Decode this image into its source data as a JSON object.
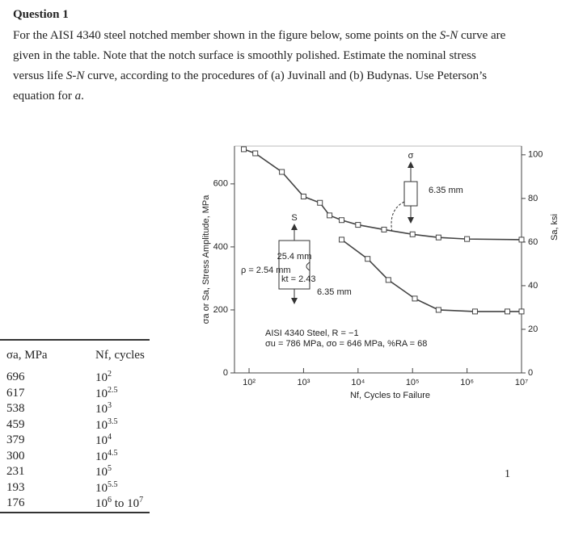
{
  "question": {
    "title": "Question 1",
    "body": [
      {
        "text": "For the AISI 4340 steel notched member shown in the figure below, some points on the "
      },
      {
        "text": "S-N",
        "italic": true
      },
      {
        "text": " curve are given in the table. Note that the notch surface is smoothly polished. Estimate the nominal stress versus life "
      },
      {
        "text": "S-N",
        "italic": true
      },
      {
        "text": " curve, according to the procedures of (a) Juvinall and (b) Budynas. Use Peterson’s equation for "
      },
      {
        "text": "a",
        "italic": true
      },
      {
        "text": "."
      }
    ]
  },
  "figure": {
    "type": "line",
    "log_x": true,
    "xlabel": "Nf, Cycles to Failure",
    "ylabel": "σa or Sa, Stress Amplitude, MPa",
    "y2label": "Sa, ksi",
    "xlim": [
      54,
      10000000
    ],
    "xticks": [
      {
        "value": 100,
        "label": "10²"
      },
      {
        "value": 1000,
        "label": "10³"
      },
      {
        "value": 10000,
        "label": "10⁴"
      },
      {
        "value": 100000,
        "label": "10⁵"
      },
      {
        "value": 1000000,
        "label": "10⁶"
      },
      {
        "value": 10000000,
        "label": "10⁷"
      }
    ],
    "ylim": [
      0,
      720
    ],
    "yticks": [
      0,
      200,
      400,
      600
    ],
    "y2lim": [
      0,
      104
    ],
    "y2ticks": [
      0,
      20,
      40,
      60,
      80,
      100
    ],
    "series": [
      {
        "color": "#444444",
        "x": [
          80,
          130,
          400,
          1000,
          2000,
          3000,
          5000,
          10000,
          30000,
          100000,
          300000,
          1000000,
          10000000
        ],
        "values": [
          710,
          697,
          638,
          560,
          540,
          500,
          485,
          470,
          455,
          440,
          430,
          425,
          423
        ]
      },
      {
        "color": "#444444",
        "x": [
          5000,
          15000,
          36000,
          110000,
          300000,
          1400000,
          5500000,
          10000000
        ],
        "values": [
          423,
          362,
          295,
          236,
          200,
          195,
          195,
          195
        ]
      }
    ],
    "annotations": {
      "sigma": "σ",
      "width_top": "6.35 mm",
      "s_label": "S",
      "height": "25.4 mm",
      "radius": "ρ = 2.54 mm",
      "kt": "kt = 2.43",
      "width_bottom": "6.35 mm",
      "material": "AISI 4340 Steel, R = −1",
      "properties": "σu = 786 MPa, σo = 646 MPa, %RA = 68"
    }
  },
  "table": {
    "header": [
      "σa, MPa",
      "Nf, cycles"
    ],
    "rows": [
      [
        "696",
        {
          "base": "10",
          "exp": "2"
        }
      ],
      [
        "617",
        {
          "base": "10",
          "exp": "2.5"
        }
      ],
      [
        "538",
        {
          "base": "10",
          "exp": "3"
        }
      ],
      [
        "459",
        {
          "base": "10",
          "exp": "3.5"
        }
      ],
      [
        "379",
        {
          "base": "10",
          "exp": "4"
        }
      ],
      [
        "300",
        {
          "base": "10",
          "exp": "4.5"
        }
      ],
      [
        "231",
        {
          "base": "10",
          "exp": "5"
        }
      ],
      [
        "193",
        {
          "base": "10",
          "exp": "5.5"
        }
      ],
      [
        "176",
        {
          "base": "10",
          "exp": "6",
          "tail": " to ",
          "base2": "10",
          "exp2": "7"
        }
      ]
    ]
  },
  "page_number": "1"
}
